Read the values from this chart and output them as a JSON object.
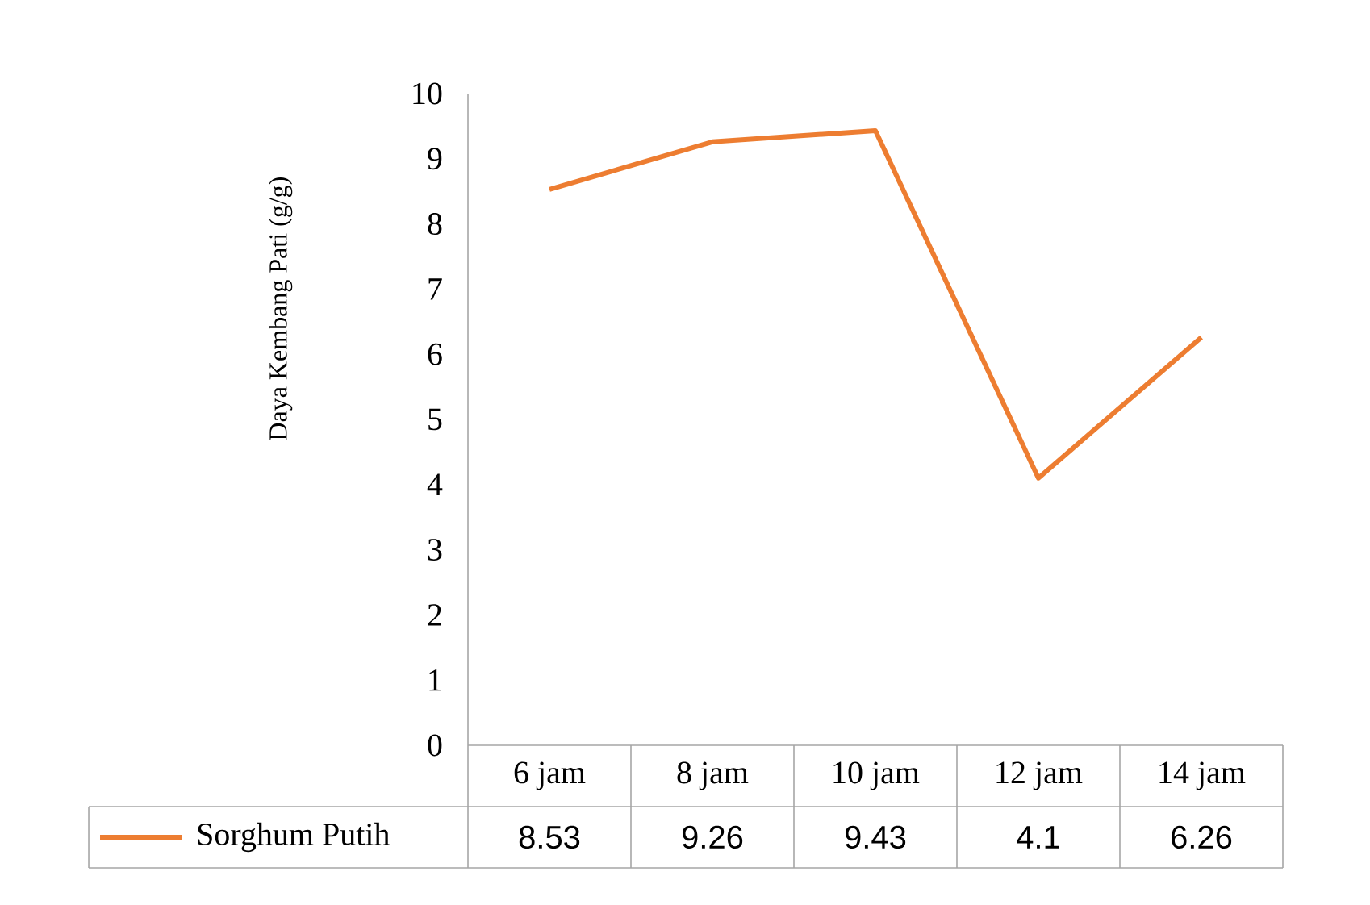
{
  "chart_data": {
    "type": "line",
    "ylabel": "Daya Kembang Pati (g/g)",
    "categories": [
      "6 jam",
      "8 jam",
      "10 jam",
      "12 jam",
      "14 jam"
    ],
    "series": [
      {
        "name": "Sorghum Putih",
        "color": "#ed7d31",
        "values": [
          8.53,
          9.26,
          9.43,
          4.1,
          6.26
        ]
      }
    ],
    "ylim": [
      0,
      10
    ],
    "yticks": [
      0,
      1,
      2,
      3,
      4,
      5,
      6,
      7,
      8,
      9,
      10
    ],
    "data_labels": true,
    "legend": "bottom"
  }
}
